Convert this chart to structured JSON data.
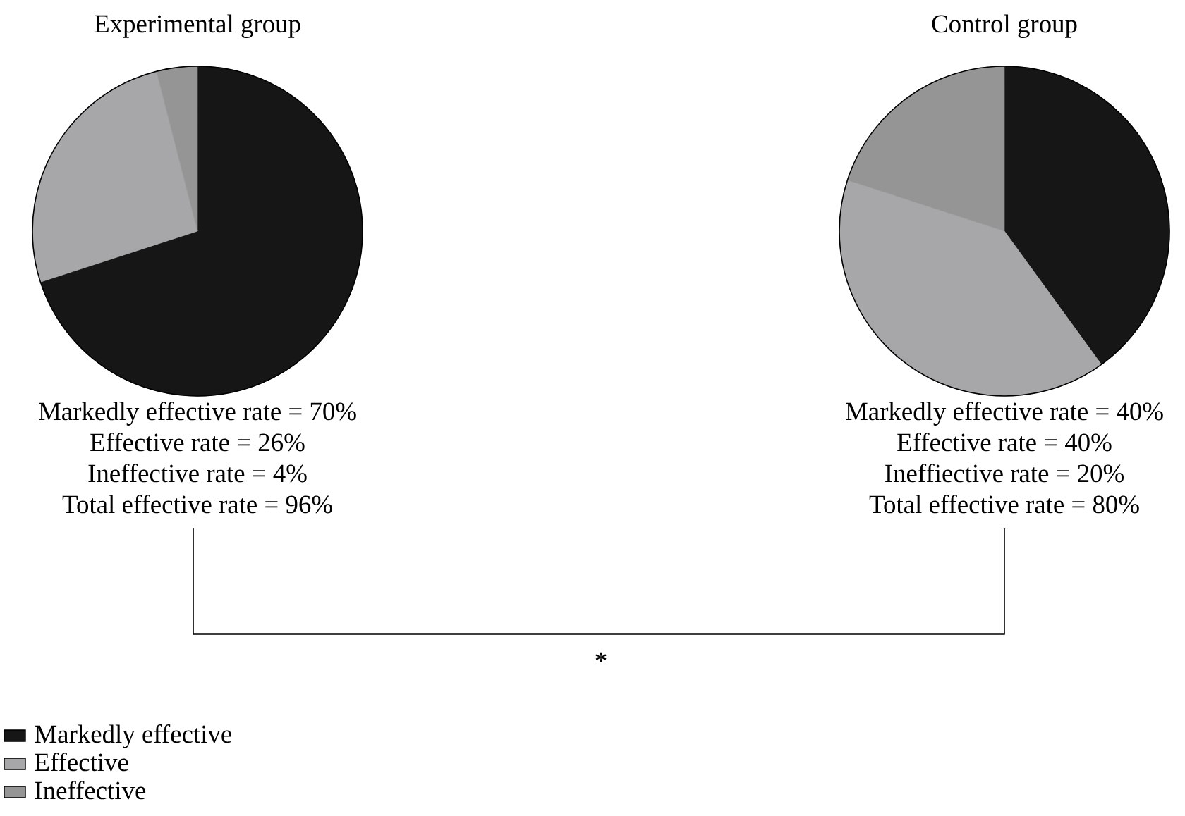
{
  "chart_data": [
    {
      "type": "pie",
      "title": "Experimental group",
      "categories": [
        "Markedly effective",
        "Effective",
        "Ineffective"
      ],
      "values": [
        70,
        26,
        4
      ],
      "colors": [
        "#161616",
        "#a7a6a9",
        "#959595"
      ],
      "legend": "bottom left",
      "annotations": [
        "Markedly effective rate = 70%",
        "Effective rate = 26%",
        "Ineffective rate = 4%",
        "Total effective rate = 96%",
        "*"
      ]
    },
    {
      "type": "pie",
      "title": "Control group",
      "categories": [
        null,
        null,
        null
      ],
      "values": [
        40,
        40,
        20
      ],
      "colors": [
        "#161616",
        "#a7a6a9",
        "#959595"
      ],
      "annotations": [
        "Markedly effective rate = 40%",
        "Effective rate = 40%",
        "Ineffiective rate = 20%",
        "Total effective rate = 80%"
      ]
    }
  ]
}
